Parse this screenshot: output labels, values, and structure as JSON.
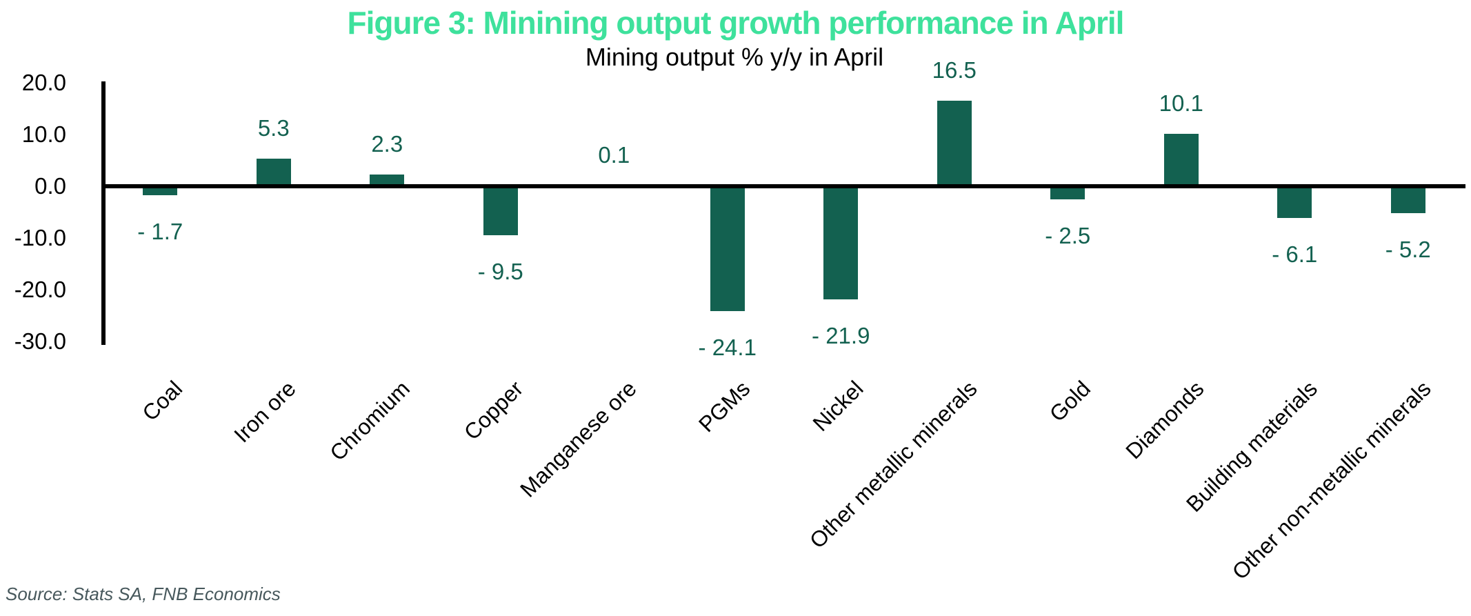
{
  "header": {
    "title": "Figure 3: Minining output growth performance in April"
  },
  "chart_data": {
    "type": "bar",
    "title": "Mining output % y/y in April",
    "categories": [
      "Coal",
      "Iron ore",
      "Chromium",
      "Copper",
      "Manganese ore",
      "PGMs",
      "Nickel",
      "Other metallic minerals",
      "Gold",
      "Diamonds",
      "Building materials",
      "Other non-metallic minerals"
    ],
    "values": [
      -1.7,
      5.3,
      2.3,
      -9.5,
      0.1,
      -24.1,
      -21.9,
      16.5,
      -2.5,
      10.1,
      -6.1,
      -5.2
    ],
    "data_labels": [
      "- 1.7",
      "5.3",
      "2.3",
      "- 9.5",
      "0.1",
      "- 24.1",
      "- 21.9",
      "16.5",
      "- 2.5",
      "10.1",
      "- 6.1",
      "- 5.2"
    ],
    "xlabel": "",
    "ylabel": "",
    "ylim": [
      -30,
      20
    ],
    "yticks": [
      20,
      10,
      0,
      -10,
      -20,
      -30
    ],
    "ytick_labels": [
      "20.0",
      "10.0",
      "0.0",
      "-10.0",
      "-20.0",
      "-30.0"
    ],
    "grid": false,
    "legend_position": "none",
    "bar_color": "#136150",
    "data_label_color": "#136150",
    "axis_color": "#000000"
  },
  "footer": {
    "source": "Source: Stats SA, FNB Economics"
  },
  "colors": {
    "title_text": "#3EE19C",
    "source_text": "#47585C"
  }
}
